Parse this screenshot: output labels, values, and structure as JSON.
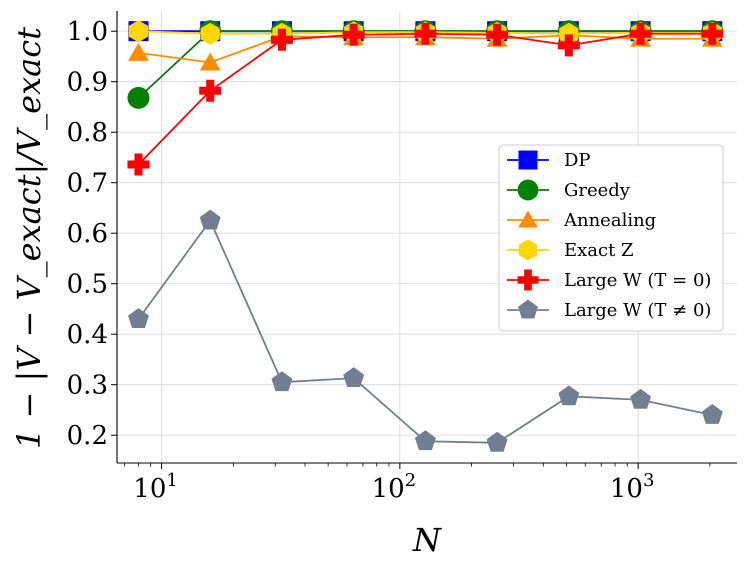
{
  "chart_data": {
    "type": "line",
    "xlabel": "N",
    "ylabel": "1 − |V − V_exact|/V_exact",
    "xscale": "log",
    "xlim": [
      6.5,
      2600
    ],
    "ylim": [
      0.145,
      1.04
    ],
    "x_ticks": [
      10,
      100,
      1000
    ],
    "x_tick_labels": [
      "10^1",
      "10^2",
      "10^3"
    ],
    "y_ticks": [
      0.2,
      0.3,
      0.4,
      0.5,
      0.6,
      0.7,
      0.8,
      0.9,
      1.0
    ],
    "y_tick_labels": [
      "0.2",
      "0.3",
      "0.4",
      "0.5",
      "0.6",
      "0.7",
      "0.8",
      "0.9",
      "1.0"
    ],
    "grid": true,
    "legend_position": "right",
    "x": [
      8,
      16,
      32,
      64,
      128,
      256,
      512,
      1024,
      2048
    ],
    "series": [
      {
        "name": "DP",
        "color": "#0000ff",
        "marker": "square",
        "values": [
          1.0,
          1.0,
          1.0,
          1.0,
          1.0,
          1.0,
          1.0,
          1.0,
          1.0
        ]
      },
      {
        "name": "Greedy",
        "color": "#008000",
        "marker": "circle",
        "values": [
          0.868,
          1.0,
          1.0,
          1.0,
          1.0,
          1.0,
          1.0,
          1.0,
          1.0
        ]
      },
      {
        "name": "Annealing",
        "color": "#ff8c00",
        "marker": "triangle",
        "values": [
          0.957,
          0.938,
          0.99,
          0.988,
          0.988,
          0.985,
          0.992,
          0.985,
          0.985
        ]
      },
      {
        "name": "Exact Z",
        "color": "#ffd700",
        "marker": "hexagon",
        "values": [
          1.0,
          0.995,
          0.995,
          0.998,
          0.998,
          0.997,
          0.995,
          0.997,
          0.997
        ]
      },
      {
        "name": "Large W (T = 0)",
        "color": "#ff0000",
        "marker": "plus",
        "values": [
          0.736,
          0.882,
          0.983,
          0.993,
          0.995,
          0.993,
          0.972,
          0.995,
          0.995
        ]
      },
      {
        "name": "Large W (T ≠ 0)",
        "color": "#708090",
        "marker": "pentagon",
        "values": [
          0.43,
          0.625,
          0.305,
          0.313,
          0.188,
          0.185,
          0.277,
          0.27,
          0.24
        ]
      }
    ]
  }
}
